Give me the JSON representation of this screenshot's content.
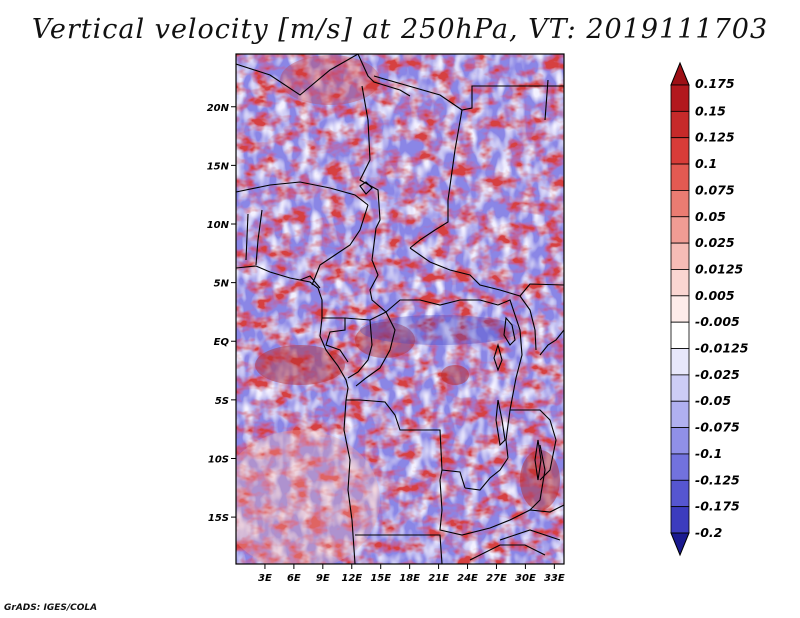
{
  "title": "Vertical velocity [m/s] at 250hPa, VT: 2019111703",
  "footer": "GrADS: IGES/COLA",
  "map": {
    "lat_range": [
      -19,
      24.5
    ],
    "lon_range": [
      0,
      34
    ],
    "lat_ticks": [
      {
        "value": 20,
        "label": "20N"
      },
      {
        "value": 15,
        "label": "15N"
      },
      {
        "value": 10,
        "label": "10N"
      },
      {
        "value": 5,
        "label": "5N"
      },
      {
        "value": 0,
        "label": "EQ"
      },
      {
        "value": -5,
        "label": "5S"
      },
      {
        "value": -10,
        "label": "10S"
      },
      {
        "value": -15,
        "label": "15S"
      }
    ],
    "lon_ticks": [
      {
        "value": 3,
        "label": "3E"
      },
      {
        "value": 6,
        "label": "6E"
      },
      {
        "value": 9,
        "label": "9E"
      },
      {
        "value": 12,
        "label": "12E"
      },
      {
        "value": 15,
        "label": "15E"
      },
      {
        "value": 18,
        "label": "18E"
      },
      {
        "value": 21,
        "label": "21E"
      },
      {
        "value": 24,
        "label": "24E"
      },
      {
        "value": 27,
        "label": "27E"
      },
      {
        "value": 30,
        "label": "30E"
      },
      {
        "value": 33,
        "label": "33E"
      }
    ],
    "field": "vertical velocity (shaded)",
    "overlay": "country boundaries and coastlines (black)"
  },
  "colorbar": {
    "levels": [
      {
        "label": "0.175",
        "color": "#b2181e"
      },
      {
        "label": "0.15",
        "color": "#c62a2a"
      },
      {
        "label": "0.125",
        "color": "#d83c38"
      },
      {
        "label": "0.1",
        "color": "#e35a52"
      },
      {
        "label": "0.075",
        "color": "#ea7c72"
      },
      {
        "label": "0.05",
        "color": "#f09c94"
      },
      {
        "label": "0.025",
        "color": "#f6bcb6"
      },
      {
        "label": "0.0125",
        "color": "#fad6d2"
      },
      {
        "label": "0.005",
        "color": "#fdecea"
      },
      {
        "label": "-0.005",
        "color": "#ffffff"
      },
      {
        "label": "-0.0125",
        "color": "#e8e8fb"
      },
      {
        "label": "-0.025",
        "color": "#cdcdf6"
      },
      {
        "label": "-0.05",
        "color": "#b0b0f0"
      },
      {
        "label": "-0.075",
        "color": "#9090e8"
      },
      {
        "label": "-0.1",
        "color": "#7272de"
      },
      {
        "label": "-0.125",
        "color": "#5656d0"
      },
      {
        "label": "-0.175",
        "color": "#3c3cbe"
      },
      {
        "label": "-0.2",
        "color": "#2626a6"
      }
    ],
    "top_color": "#9e1016",
    "bottom_color": "#1a1a90"
  }
}
